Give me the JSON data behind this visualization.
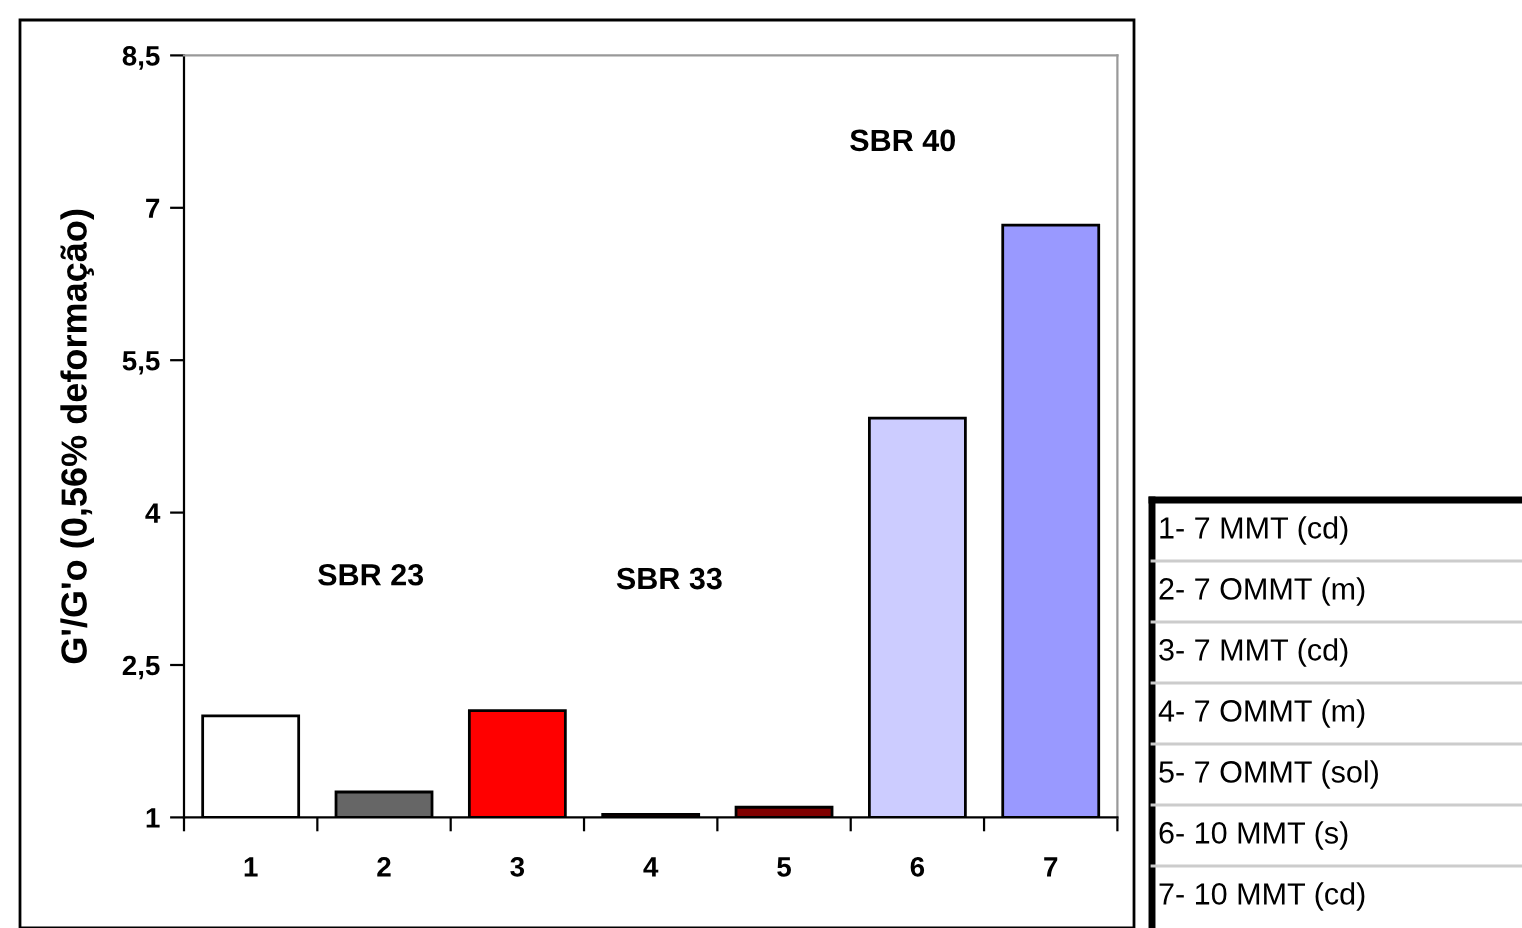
{
  "chart_data": {
    "type": "bar",
    "ylabel": "G'/G'o (0,56% deformação)",
    "categories": [
      "1",
      "2",
      "3",
      "4",
      "5",
      "6",
      "7"
    ],
    "values": [
      2.0,
      1.25,
      2.05,
      1.03,
      1.1,
      4.93,
      6.83
    ],
    "colors": [
      "#ffffff",
      "#666666",
      "#ff0000",
      "#400000",
      "#800000",
      "#ccccff",
      "#9999ff"
    ],
    "ylim": [
      1,
      8.5
    ],
    "yticks": [
      1,
      {
        "value": 2.5,
        "label": "2,5"
      },
      4,
      {
        "value": 5.5,
        "label": "5,5"
      },
      7,
      {
        "value": 8.5,
        "label": "8,5"
      }
    ],
    "grid": false,
    "legend": false,
    "annotations": [
      "SBR 23",
      "SBR 33",
      "SBR 40",
      "1- 7 MMT (cd)",
      "2- 7 OMMT (m)",
      "3- 7 MMT (cd)",
      "4- 7 OMMT (m)",
      "5- 7 OMMT (sol)",
      "6- 10 MMT (s)",
      "7- 10 MMT (cd)"
    ]
  }
}
